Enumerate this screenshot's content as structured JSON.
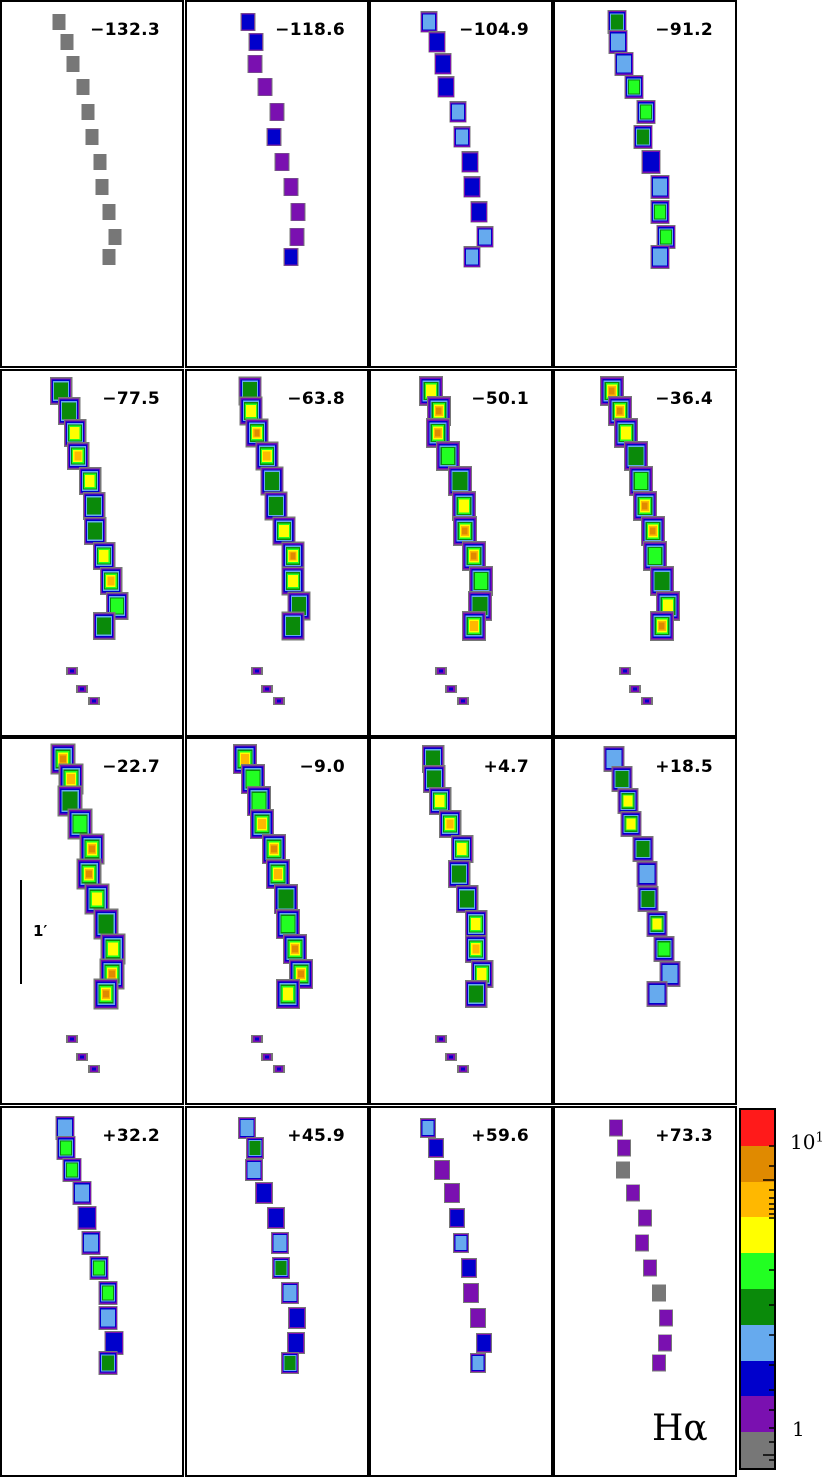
{
  "figure": {
    "line_label": "Hα",
    "scale_bar_label": "1′",
    "panels": [
      {
        "velocity": "−132.3",
        "level": 0.05
      },
      {
        "velocity": "−118.6",
        "level": 0.18
      },
      {
        "velocity": "−104.9",
        "level": 0.38
      },
      {
        "velocity": "−91.2",
        "level": 0.55
      },
      {
        "velocity": "−77.5",
        "level": 0.8
      },
      {
        "velocity": "−63.8",
        "level": 0.85
      },
      {
        "velocity": "−50.1",
        "level": 0.92
      },
      {
        "velocity": "−36.4",
        "level": 0.92
      },
      {
        "velocity": "−22.7",
        "level": 0.97
      },
      {
        "velocity": "−9.0",
        "level": 0.95
      },
      {
        "velocity": "+4.7",
        "level": 0.8
      },
      {
        "velocity": "+18.5",
        "level": 0.65
      },
      {
        "velocity": "+32.2",
        "level": 0.55
      },
      {
        "velocity": "+45.9",
        "level": 0.42
      },
      {
        "velocity": "+59.6",
        "level": 0.28
      },
      {
        "velocity": "+73.3",
        "level": 0.1
      }
    ]
  },
  "colorbar": {
    "labels": {
      "upper": "10",
      "upper_exp": "1",
      "lower": "1"
    },
    "colors_top_to_bottom": [
      "#ff1a1a",
      "#e08a00",
      "#ffb800",
      "#ffff00",
      "#22ff22",
      "#0a8a0a",
      "#66aaee",
      "#0000cc",
      "#7a10b0",
      "#777777"
    ]
  },
  "palette": [
    "#777777",
    "#7a10b0",
    "#0000cc",
    "#66aaee",
    "#0a8a0a",
    "#22ff22",
    "#ffff00",
    "#ffb800",
    "#e08a00"
  ]
}
